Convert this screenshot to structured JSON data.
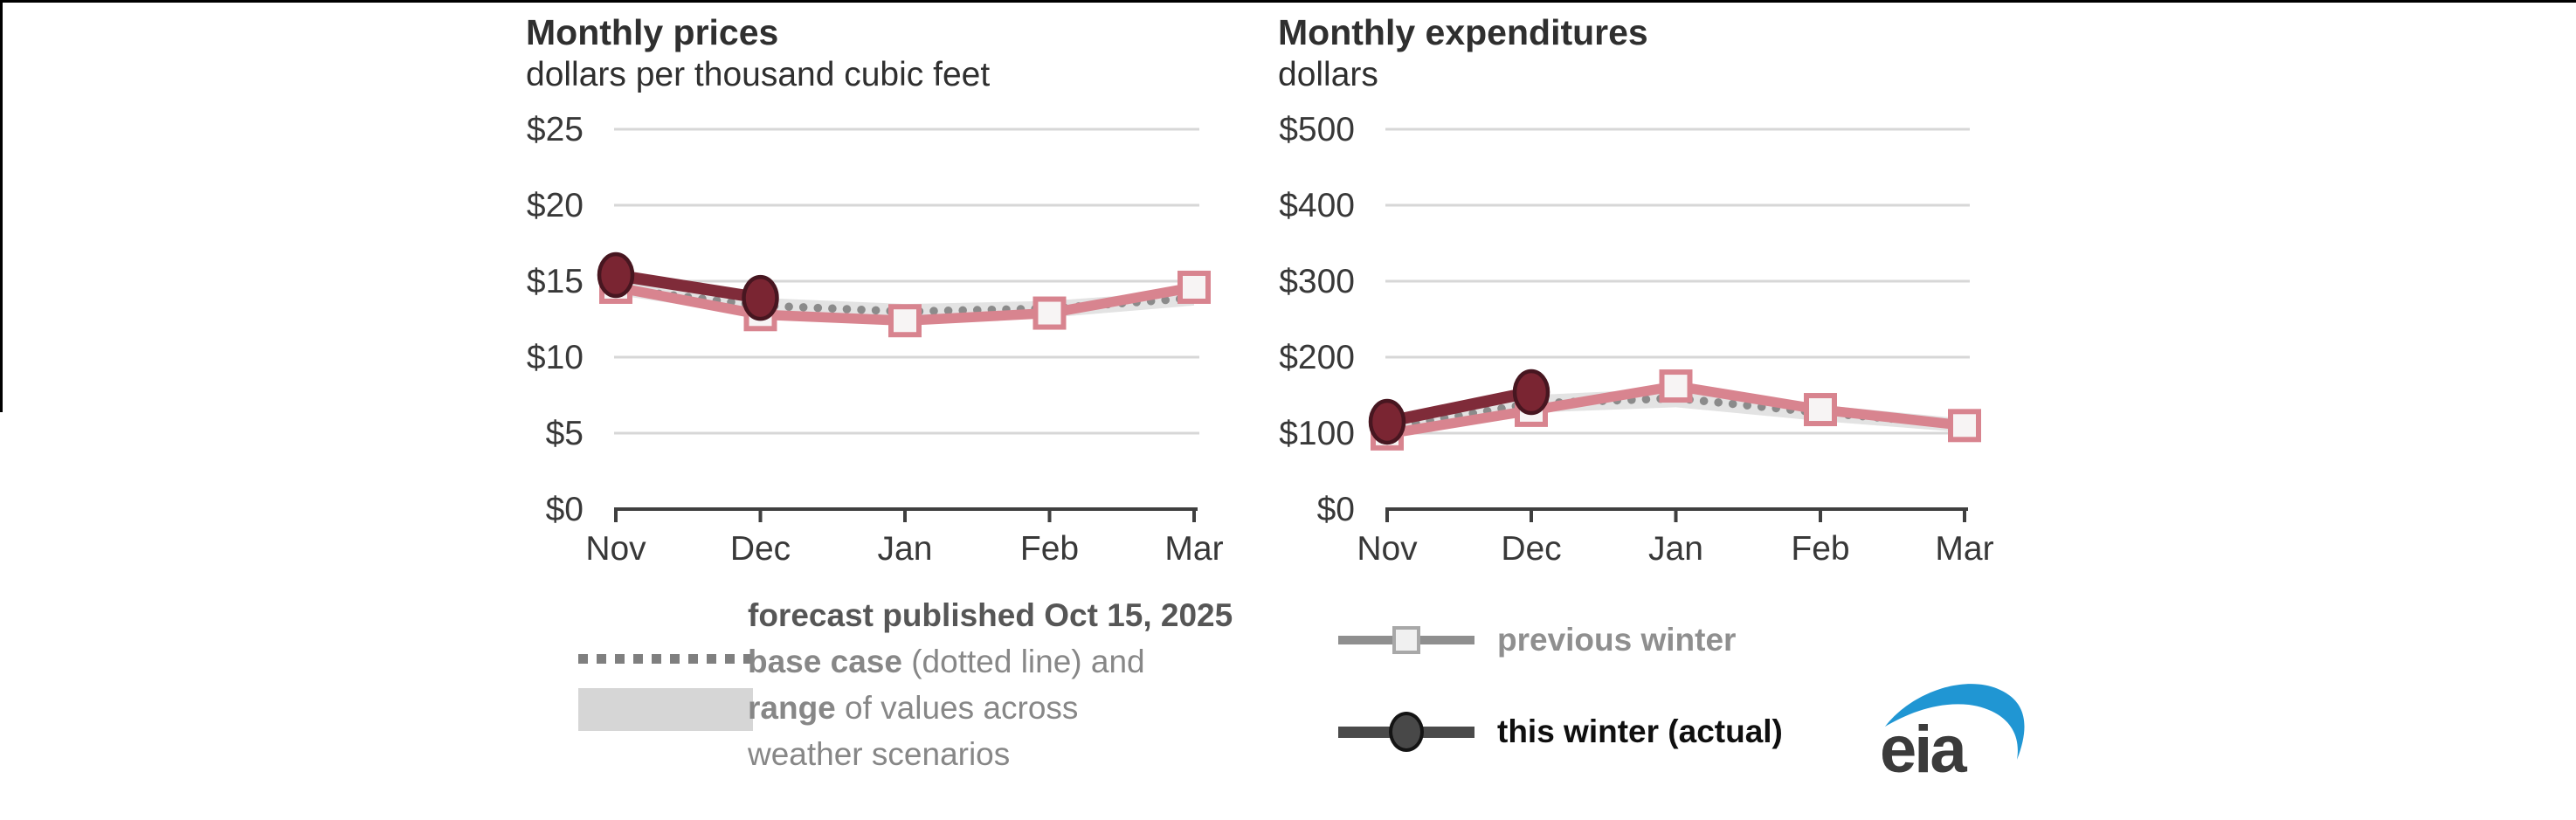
{
  "chart_data": [
    {
      "type": "line",
      "title": "Monthly prices",
      "subtitle": "dollars per thousand cubic feet",
      "categories": [
        "Nov",
        "Dec",
        "Jan",
        "Feb",
        "Mar"
      ],
      "ylim": [
        0,
        25
      ],
      "y_ticks": [
        0,
        5,
        10,
        15,
        20,
        25
      ],
      "y_tick_labels": [
        "$0",
        "$5",
        "$10",
        "$15",
        "$20",
        "$25"
      ],
      "grid": "horizontal",
      "legend_position": "bottom",
      "series": [
        {
          "name": "forecast range of values across weather scenarios",
          "style": "band",
          "color": "#e3e3e3",
          "low": [
            14.1,
            12.7,
            12.2,
            12.6,
            13.4
          ],
          "high": [
            15.0,
            13.9,
            13.5,
            13.7,
            14.4
          ]
        },
        {
          "name": "forecast base case published Oct 15, 2025",
          "style": "dotted",
          "color": "#8b8b8b",
          "values": [
            14.5,
            13.4,
            13.0,
            13.2,
            13.9
          ]
        },
        {
          "name": "previous winter",
          "style": "line-square",
          "color": "#d8848f",
          "marker_fill": "#f7f4f4",
          "values": [
            14.6,
            12.8,
            12.4,
            12.9,
            14.6
          ]
        },
        {
          "name": "this winter (actual)",
          "style": "line-circle",
          "color": "#7f2b39",
          "marker_fill": "#7a2532",
          "marker_stroke": "#471620",
          "values": [
            15.4,
            13.9,
            null,
            null,
            null
          ]
        }
      ]
    },
    {
      "type": "line",
      "title": "Monthly expenditures",
      "subtitle": "dollars",
      "categories": [
        "Nov",
        "Dec",
        "Jan",
        "Feb",
        "Mar"
      ],
      "ylim": [
        0,
        500
      ],
      "y_ticks": [
        0,
        100,
        200,
        300,
        400,
        500
      ],
      "y_tick_labels": [
        "$0",
        "$100",
        "$200",
        "$300",
        "$400",
        "$500"
      ],
      "grid": "horizontal",
      "legend_position": "bottom",
      "series": [
        {
          "name": "forecast range of values across weather scenarios",
          "style": "band",
          "color": "#e3e3e3",
          "low": [
            98,
            127,
            134,
            116,
            101
          ],
          "high": [
            116,
            150,
            159,
            137,
            119
          ]
        },
        {
          "name": "forecast base case published Oct 15, 2025",
          "style": "dotted",
          "color": "#8b8b8b",
          "values": [
            107,
            139,
            146,
            127,
            111
          ]
        },
        {
          "name": "previous winter",
          "style": "line-square",
          "color": "#d8848f",
          "marker_fill": "#f7f4f4",
          "values": [
            99,
            130,
            162,
            131,
            110
          ]
        },
        {
          "name": "this winter (actual)",
          "style": "line-circle",
          "color": "#7f2b39",
          "marker_fill": "#7a2532",
          "marker_stroke": "#471620",
          "values": [
            115,
            154,
            null,
            null,
            null
          ]
        }
      ]
    }
  ],
  "legend": {
    "forecast_line1": "forecast published Oct 15, 2025",
    "forecast_line2_bold": "base case",
    "forecast_line2_rest": " (dotted line) and",
    "forecast_line3_bold": "range",
    "forecast_line3_rest": " of values across",
    "forecast_line4": "weather scenarios",
    "previous_winter_label": "previous winter",
    "this_winter_label": "this winter (actual)"
  },
  "logo": {
    "text": "eia",
    "swoosh_color": "#2096d3",
    "text_color": "#3b3b3b"
  },
  "colors": {
    "grid": "#d7d7d7",
    "axis": "#3f3f3f",
    "tick_label": "#383838",
    "title": "#2f2f2f",
    "band": "#e3e3e3",
    "dotted": "#8b8b8b",
    "previous_winter": "#d8848f",
    "this_winter": "#7f2b39"
  }
}
